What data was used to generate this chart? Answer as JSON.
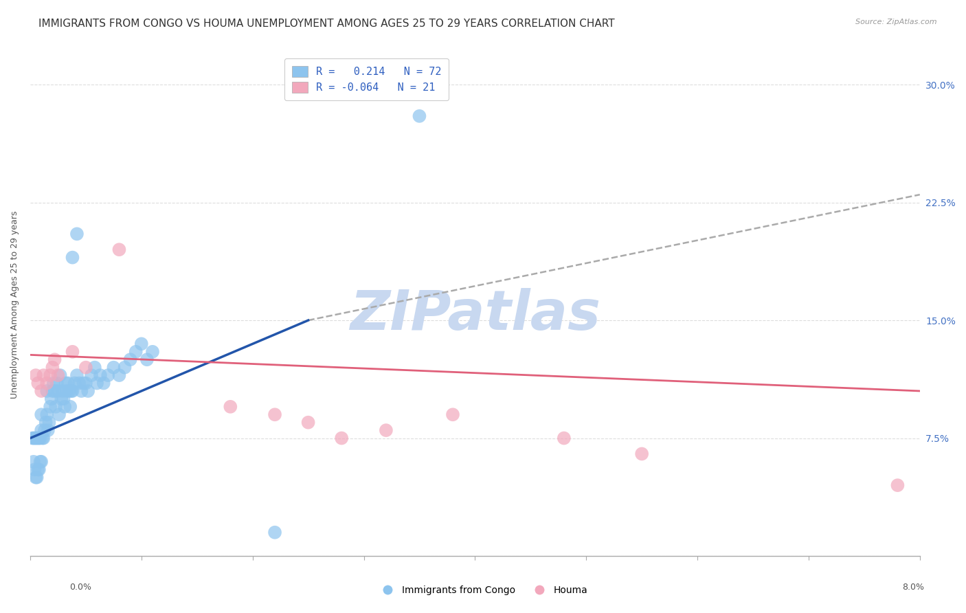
{
  "title": "IMMIGRANTS FROM CONGO VS HOUMA UNEMPLOYMENT AMONG AGES 25 TO 29 YEARS CORRELATION CHART",
  "source": "Source: ZipAtlas.com",
  "ylabel": "Unemployment Among Ages 25 to 29 years",
  "ytick_values": [
    0,
    7.5,
    15.0,
    22.5,
    30.0
  ],
  "ytick_labels": [
    "",
    "7.5%",
    "15.0%",
    "22.5%",
    "30.0%"
  ],
  "xlim": [
    0.0,
    8.0
  ],
  "ylim": [
    0.0,
    32.0
  ],
  "blue_color": "#8DC4EE",
  "pink_color": "#F2A8BC",
  "blue_trend_color": "#2255AA",
  "pink_trend_color": "#E0607A",
  "gray_dash_color": "#AAAAAA",
  "watermark_color": "#C8D8F0",
  "background_color": "#FFFFFF",
  "title_fontsize": 11,
  "axis_label_fontsize": 9,
  "tick_fontsize": 9,
  "blue_scatter_x": [
    0.02,
    0.03,
    0.04,
    0.05,
    0.06,
    0.07,
    0.08,
    0.09,
    0.1,
    0.1,
    0.11,
    0.12,
    0.13,
    0.14,
    0.15,
    0.15,
    0.16,
    0.17,
    0.18,
    0.19,
    0.2,
    0.21,
    0.22,
    0.23,
    0.24,
    0.25,
    0.26,
    0.27,
    0.28,
    0.29,
    0.3,
    0.31,
    0.32,
    0.33,
    0.34,
    0.35,
    0.36,
    0.37,
    0.38,
    0.4,
    0.42,
    0.44,
    0.46,
    0.48,
    0.5,
    0.52,
    0.55,
    0.58,
    0.6,
    0.63,
    0.66,
    0.7,
    0.75,
    0.8,
    0.85,
    0.9,
    0.95,
    1.0,
    1.05,
    1.1,
    0.03,
    0.04,
    0.05,
    0.06,
    0.07,
    0.08,
    0.09,
    0.1,
    0.38,
    0.42,
    2.2,
    3.5
  ],
  "blue_scatter_y": [
    7.5,
    7.5,
    7.5,
    7.5,
    7.5,
    7.5,
    7.5,
    7.5,
    8.0,
    9.0,
    7.5,
    7.5,
    8.0,
    8.5,
    9.0,
    10.5,
    8.0,
    8.5,
    9.5,
    10.0,
    10.5,
    11.0,
    10.5,
    9.5,
    11.0,
    10.5,
    9.0,
    11.5,
    10.0,
    10.5,
    10.0,
    9.5,
    11.0,
    10.5,
    11.0,
    10.5,
    9.5,
    10.5,
    10.5,
    11.0,
    11.5,
    11.0,
    10.5,
    11.0,
    11.0,
    10.5,
    11.5,
    12.0,
    11.0,
    11.5,
    11.0,
    11.5,
    12.0,
    11.5,
    12.0,
    12.5,
    13.0,
    13.5,
    12.5,
    13.0,
    6.0,
    5.5,
    5.0,
    5.0,
    5.5,
    5.5,
    6.0,
    6.0,
    19.0,
    20.5,
    1.5,
    28.0
  ],
  "pink_scatter_x": [
    0.05,
    0.07,
    0.1,
    0.12,
    0.15,
    0.18,
    0.2,
    0.22,
    0.25,
    0.38,
    0.5,
    0.8,
    1.8,
    2.2,
    2.5,
    2.8,
    3.2,
    3.8,
    4.8,
    5.5,
    7.8
  ],
  "pink_scatter_y": [
    11.5,
    11.0,
    10.5,
    11.5,
    11.0,
    11.5,
    12.0,
    12.5,
    11.5,
    13.0,
    12.0,
    19.5,
    9.5,
    9.0,
    8.5,
    7.5,
    8.0,
    9.0,
    7.5,
    6.5,
    4.5
  ],
  "blue_line_x": [
    0.0,
    2.5
  ],
  "blue_line_y": [
    7.5,
    15.0
  ],
  "gray_line_x": [
    2.5,
    8.0
  ],
  "gray_line_y": [
    15.0,
    23.0
  ],
  "pink_line_x": [
    0.0,
    8.0
  ],
  "pink_line_y": [
    12.8,
    10.5
  ]
}
